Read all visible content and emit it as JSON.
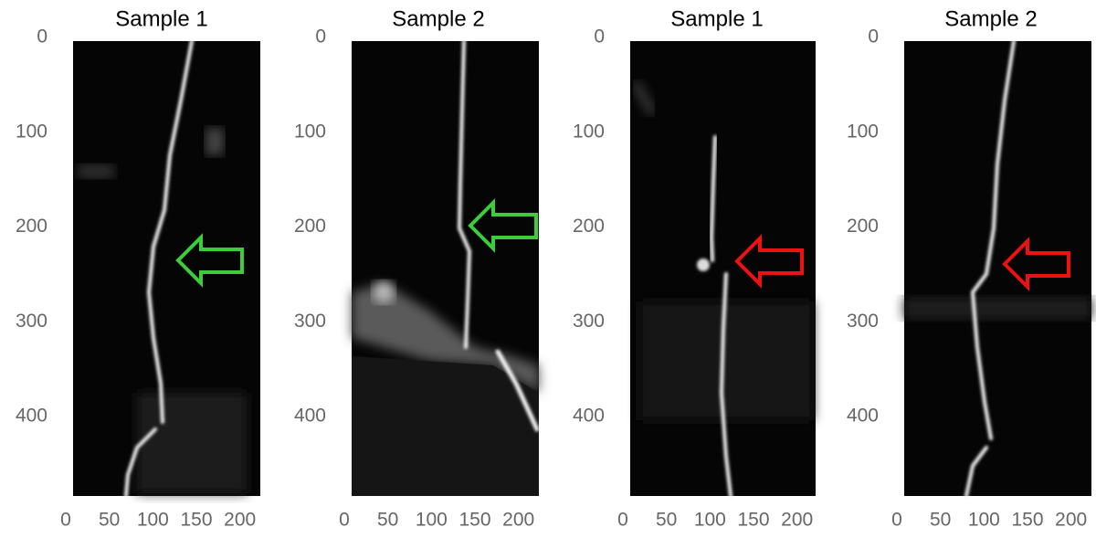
{
  "panels": [
    {
      "title": "Sample 1",
      "xlim": [
        0,
        215
      ],
      "ylim": [
        0,
        480
      ],
      "xticks": [
        0,
        50,
        100,
        150,
        200
      ],
      "yticks": [
        0,
        100,
        200,
        300,
        400
      ],
      "arrow_color": "#3ccc3c"
    },
    {
      "title": "Sample 2",
      "xlim": [
        0,
        215
      ],
      "ylim": [
        0,
        480
      ],
      "xticks": [
        0,
        50,
        100,
        150,
        200
      ],
      "yticks": [
        0,
        100,
        200,
        300,
        400
      ],
      "arrow_color": "#3ccc3c"
    },
    {
      "title": "Sample 1",
      "xlim": [
        0,
        215
      ],
      "ylim": [
        0,
        480
      ],
      "xticks": [
        0,
        50,
        100,
        150,
        200
      ],
      "yticks": [
        0,
        100,
        200,
        300,
        400
      ],
      "arrow_color": "#ee1111"
    },
    {
      "title": "Sample 2",
      "xlim": [
        0,
        215
      ],
      "ylim": [
        0,
        480
      ],
      "xticks": [
        0,
        50,
        100,
        150,
        200
      ],
      "yticks": [
        0,
        100,
        200,
        300,
        400
      ],
      "arrow_color": "#ee1111"
    }
  ]
}
